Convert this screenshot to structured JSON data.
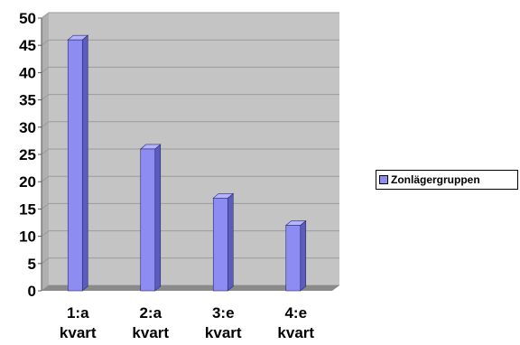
{
  "chart_data": {
    "type": "bar",
    "categories": [
      "1:a kvart",
      "2:a kvart",
      "3:e kvart",
      "4:e kvart"
    ],
    "category_lines": [
      [
        "1:a",
        "kvart"
      ],
      [
        "2:a",
        "kvart"
      ],
      [
        "3:e",
        "kvart"
      ],
      [
        "4:e",
        "kvart"
      ]
    ],
    "series": [
      {
        "name": "Zonlägergruppen",
        "values": [
          46,
          26,
          17,
          12
        ],
        "color": "#8c8cf2"
      }
    ],
    "title": "",
    "xlabel": "",
    "ylabel": "",
    "ylim": [
      0,
      50
    ],
    "yticks": [
      0,
      5,
      10,
      15,
      20,
      25,
      30,
      35,
      40,
      45,
      50
    ],
    "grid": true,
    "legend_position": "right",
    "colors": {
      "plot_background": "#c4c4c4",
      "grid": "#9a9a9a",
      "floor": "#8a8a8a",
      "bar_front": "#8c8cf2",
      "bar_side": "#5c5cbf",
      "bar_top": "#b4b4ff"
    }
  }
}
